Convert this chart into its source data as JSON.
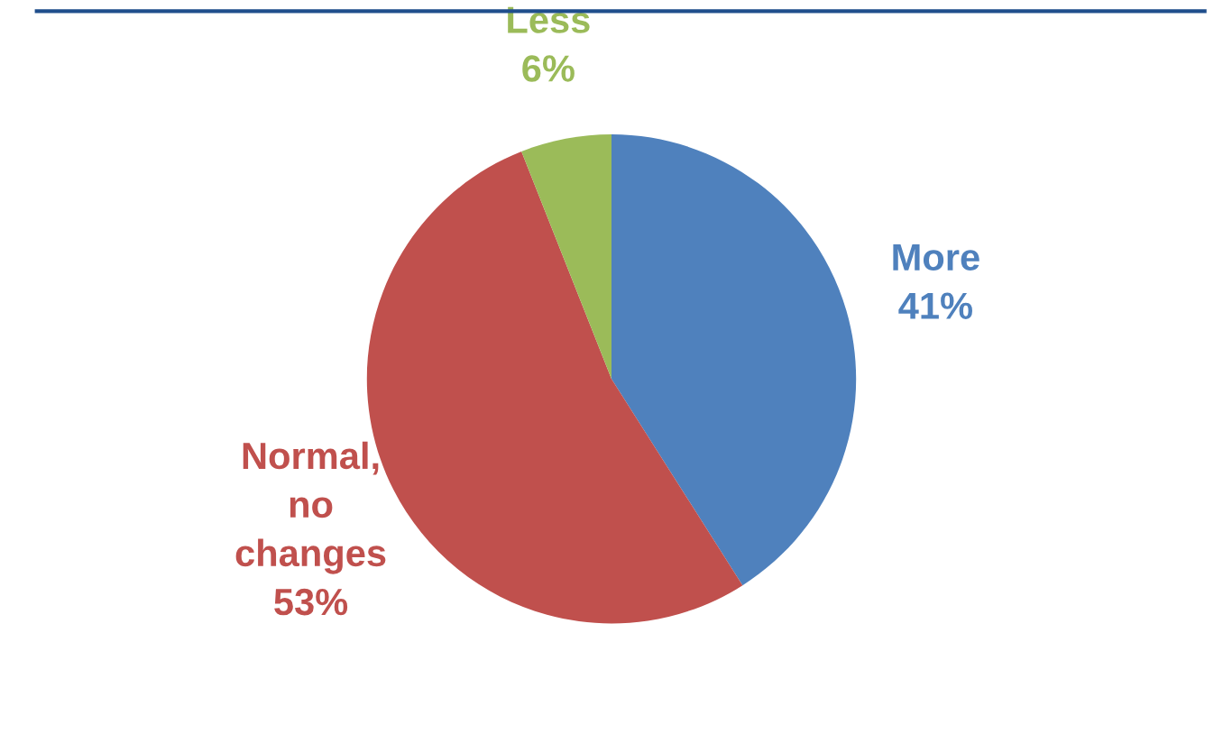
{
  "chart_data": {
    "type": "pie",
    "categories": [
      "More",
      "Normal,\nno\nchanges",
      "Less"
    ],
    "values": [
      41,
      53,
      6
    ],
    "colors": [
      "#4f81bd",
      "#c0504d",
      "#9bbb59"
    ],
    "value_labels": [
      "41%",
      "53%",
      "6%"
    ],
    "legend": false
  }
}
